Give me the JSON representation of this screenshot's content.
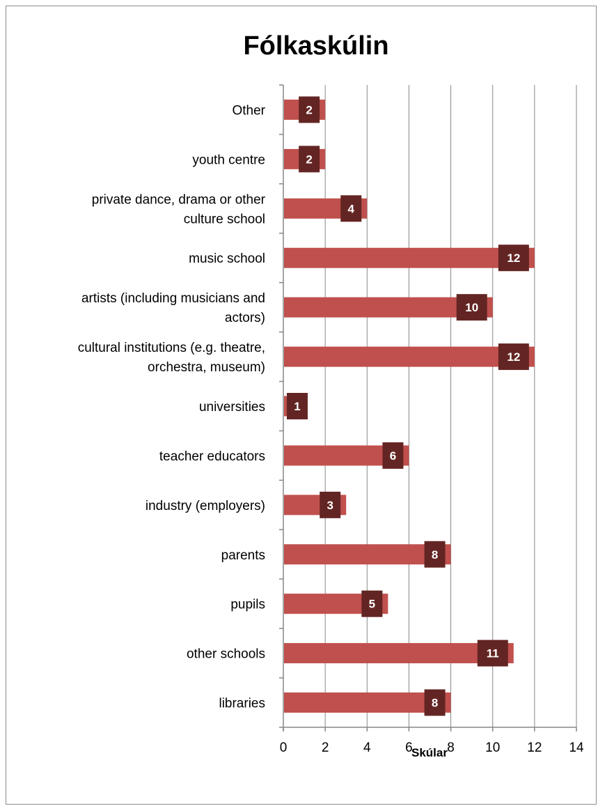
{
  "chart_data": {
    "type": "bar",
    "orientation": "horizontal",
    "title": "Fólkaskúlin",
    "xlabel": "Skúlar",
    "ylabel": "",
    "xlim": [
      0,
      14
    ],
    "xticks": [
      0,
      2,
      4,
      6,
      8,
      10,
      12,
      14
    ],
    "grid": "vertical",
    "legend": "none",
    "categories": [
      [
        "Other"
      ],
      [
        "youth centre"
      ],
      [
        "private dance, drama or other",
        "culture school"
      ],
      [
        "music school"
      ],
      [
        "artists (including musicians and",
        "actors)"
      ],
      [
        "cultural institutions (e.g. theatre,",
        "orchestra, museum)"
      ],
      [
        "universities"
      ],
      [
        "teacher educators"
      ],
      [
        "industry (employers)"
      ],
      [
        "parents"
      ],
      [
        "pupils"
      ],
      [
        "other schools"
      ],
      [
        "libraries"
      ]
    ],
    "values": [
      2,
      2,
      4,
      12,
      10,
      12,
      1,
      6,
      3,
      8,
      5,
      11,
      8
    ],
    "colors": {
      "bar": "#c0504d",
      "label_box": "#632523",
      "grid": "#868686",
      "axis": "#868686"
    }
  }
}
